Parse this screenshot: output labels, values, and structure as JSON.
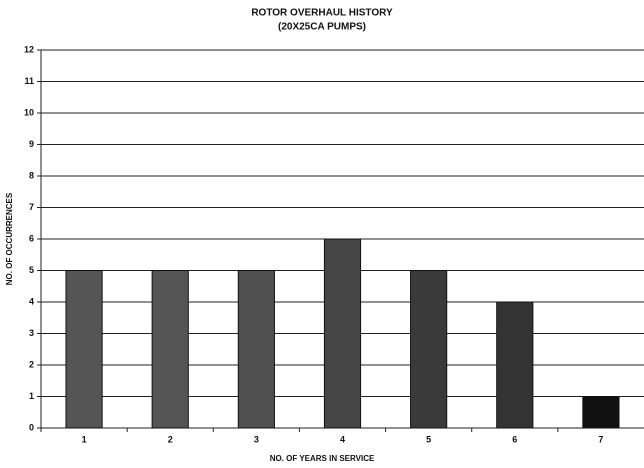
{
  "chart_data": {
    "type": "bar",
    "title": "ROTOR OVERHAUL HISTORY",
    "subtitle": "(20X25CA PUMPS)",
    "x_label": "NO. OF YEARS IN SERVICE",
    "y_label": "NO. OF OCCURRENCES",
    "categories": [
      "1",
      "2",
      "3",
      "4",
      "5",
      "6",
      "7"
    ],
    "values": [
      5,
      5,
      5,
      6,
      5,
      4,
      1
    ],
    "colors": [
      "#555555",
      "#555555",
      "#505050",
      "#454545",
      "#3a3a3a",
      "#333333",
      "#111111"
    ],
    "ylim": [
      0,
      12
    ],
    "yticks": [
      0,
      1,
      2,
      3,
      4,
      5,
      6,
      7,
      8,
      9,
      10,
      11,
      12
    ],
    "grid": true
  }
}
